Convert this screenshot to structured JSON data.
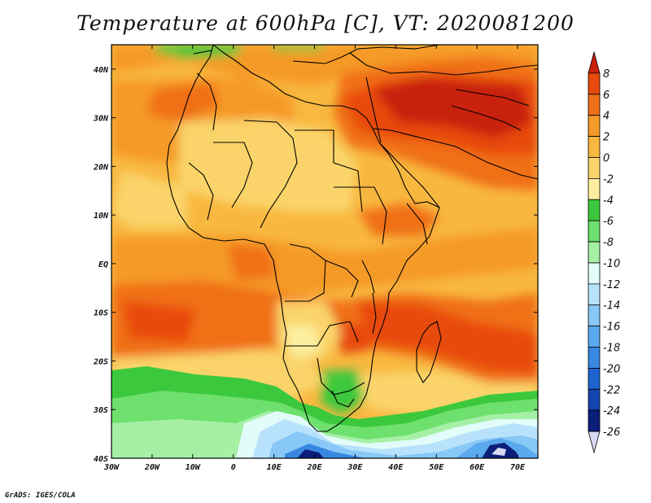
{
  "title": "Temperature at 600hPa [C], VT: 2020081200",
  "credit": "GrADS: IGES/COLA",
  "map": {
    "lon_ticks": [
      "30W",
      "20W",
      "10W",
      "0",
      "10E",
      "20E",
      "30E",
      "40E",
      "50E",
      "60E",
      "70E"
    ],
    "lat_ticks": [
      "40N",
      "30N",
      "20N",
      "10N",
      "EQ",
      "10S",
      "20S",
      "30S",
      "40S"
    ],
    "lon_range": [
      -30,
      75
    ],
    "lat_range": [
      -40,
      45
    ]
  },
  "colorbar": {
    "labels": [
      "8",
      "6",
      "4",
      "2",
      "0",
      "-2",
      "-4",
      "-6",
      "-8",
      "-10",
      "-12",
      "-14",
      "-16",
      "-18",
      "-20",
      "-22",
      "-24",
      "-26"
    ],
    "colors": [
      "#c8200a",
      "#e84a0e",
      "#f07018",
      "#f59a28",
      "#f8b840",
      "#fad46a",
      "#fcf0a0",
      "#3cc83c",
      "#6ee06e",
      "#a6f0a6",
      "#e2fcfa",
      "#b8e2fc",
      "#88c8f6",
      "#5aa8ee",
      "#3888e2",
      "#1e64d0",
      "#1444b0",
      "#0a1e7a",
      "#d8d8f4"
    ]
  }
}
